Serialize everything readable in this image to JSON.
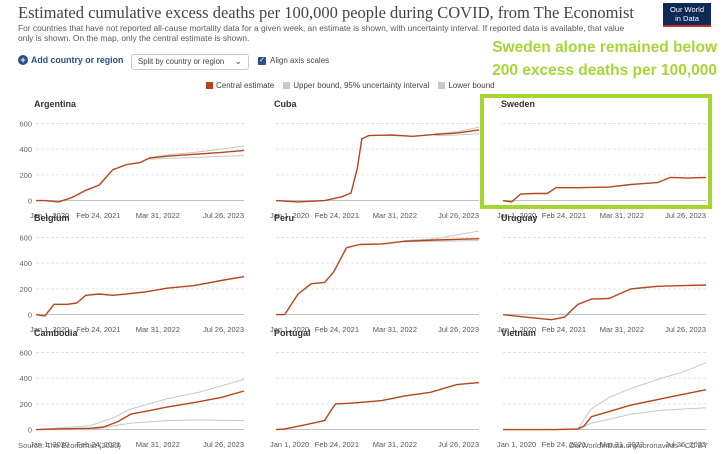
{
  "header": {
    "title": "Estimated cumulative excess deaths per 100,000 people during COVID, from The Economist",
    "subtitle": "For countries that have not reported all-cause mortality data for a given week, an estimate is shown, with uncertainty interval. If reported data is available, that value only is shown. On the map, only the central estimate is shown.",
    "logo_line1": "Our World",
    "logo_line2": "in Data"
  },
  "controls": {
    "add_country_label": "Add country or region",
    "split_label": "Split by country or region",
    "align_axes_label": "Align axis scales",
    "align_axes_checked": true
  },
  "legend": [
    {
      "label": "Central estimate",
      "color": "#b5451b"
    },
    {
      "label": "Upper bound, 95% uncertainty interval",
      "color": "#c8c8c8"
    },
    {
      "label": "Lower bound",
      "color": "#c8c8c8"
    }
  ],
  "annotation": {
    "line1": "Sweden alone remained below",
    "line2": "200 excess deaths per 100,000",
    "color": "#a6d432"
  },
  "footer": {
    "source": "Source: The Economist (2023)",
    "url": "OurWorldInData.org/coronavirus • CC BY"
  },
  "chart_data": {
    "type": "line",
    "x_ticks": [
      "Jan 1, 2020",
      "Feb 24, 2021",
      "Mar 31, 2022",
      "Jul 26, 2023"
    ],
    "y_ticks": [
      0,
      200,
      400,
      600
    ],
    "ylim": [
      -50,
      650
    ],
    "xlim": [
      "2020-01-01",
      "2023-11-01"
    ],
    "series_colors": {
      "central": "#b5451b",
      "upper": "#c8c8c8",
      "lower": "#c8c8c8"
    },
    "panels": [
      {
        "name": "Argentina",
        "central": [
          [
            "2020-01-01",
            0
          ],
          [
            "2020-03-01",
            0
          ],
          [
            "2020-06-01",
            -10
          ],
          [
            "2020-09-01",
            25
          ],
          [
            "2020-12-01",
            80
          ],
          [
            "2021-03-01",
            120
          ],
          [
            "2021-06-01",
            240
          ],
          [
            "2021-09-01",
            280
          ],
          [
            "2021-12-01",
            295
          ],
          [
            "2022-02-01",
            330
          ],
          [
            "2022-06-01",
            345
          ],
          [
            "2022-12-01",
            360
          ],
          [
            "2023-06-01",
            375
          ],
          [
            "2023-11-01",
            390
          ]
        ],
        "upper": [
          [
            "2022-02-01",
            335
          ],
          [
            "2022-06-01",
            355
          ],
          [
            "2022-12-01",
            375
          ],
          [
            "2023-06-01",
            400
          ],
          [
            "2023-11-01",
            425
          ]
        ],
        "lower": [
          [
            "2022-02-01",
            320
          ],
          [
            "2022-06-01",
            328
          ],
          [
            "2022-12-01",
            335
          ],
          [
            "2023-06-01",
            345
          ],
          [
            "2023-11-01",
            350
          ]
        ]
      },
      {
        "name": "Cuba",
        "central": [
          [
            "2020-01-01",
            0
          ],
          [
            "2020-06-01",
            -10
          ],
          [
            "2020-12-01",
            0
          ],
          [
            "2021-04-01",
            30
          ],
          [
            "2021-06-01",
            60
          ],
          [
            "2021-07-15",
            250
          ],
          [
            "2021-08-15",
            480
          ],
          [
            "2021-10-01",
            505
          ],
          [
            "2022-03-01",
            510
          ],
          [
            "2022-08-01",
            500
          ],
          [
            "2023-01-01",
            515
          ],
          [
            "2023-06-01",
            525
          ],
          [
            "2023-11-01",
            550
          ]
        ],
        "upper": [
          [
            "2023-01-01",
            520
          ],
          [
            "2023-06-01",
            535
          ],
          [
            "2023-11-01",
            570
          ]
        ],
        "lower": [
          [
            "2023-01-01",
            505
          ],
          [
            "2023-06-01",
            510
          ],
          [
            "2023-11-01",
            520
          ]
        ]
      },
      {
        "name": "Sweden",
        "central": [
          [
            "2020-01-01",
            0
          ],
          [
            "2020-03-01",
            -10
          ],
          [
            "2020-05-01",
            50
          ],
          [
            "2020-08-01",
            55
          ],
          [
            "2020-11-01",
            55
          ],
          [
            "2021-01-01",
            100
          ],
          [
            "2021-06-01",
            100
          ],
          [
            "2022-01-01",
            105
          ],
          [
            "2022-06-01",
            125
          ],
          [
            "2022-12-01",
            140
          ],
          [
            "2023-03-01",
            180
          ],
          [
            "2023-07-01",
            175
          ],
          [
            "2023-11-01",
            180
          ]
        ],
        "upper": [],
        "lower": []
      },
      {
        "name": "Belgium",
        "central": [
          [
            "2020-01-01",
            0
          ],
          [
            "2020-03-01",
            -10
          ],
          [
            "2020-05-01",
            80
          ],
          [
            "2020-08-01",
            80
          ],
          [
            "2020-10-01",
            90
          ],
          [
            "2020-12-01",
            150
          ],
          [
            "2021-03-01",
            160
          ],
          [
            "2021-06-01",
            150
          ],
          [
            "2022-01-01",
            175
          ],
          [
            "2022-06-01",
            205
          ],
          [
            "2022-12-01",
            225
          ],
          [
            "2023-06-01",
            265
          ],
          [
            "2023-11-01",
            295
          ]
        ],
        "upper": [],
        "lower": []
      },
      {
        "name": "Peru",
        "central": [
          [
            "2020-01-01",
            0
          ],
          [
            "2020-03-01",
            0
          ],
          [
            "2020-06-01",
            160
          ],
          [
            "2020-09-01",
            240
          ],
          [
            "2020-12-01",
            250
          ],
          [
            "2021-02-01",
            330
          ],
          [
            "2021-05-01",
            520
          ],
          [
            "2021-08-01",
            545
          ],
          [
            "2022-01-01",
            550
          ],
          [
            "2022-06-01",
            570
          ],
          [
            "2023-01-01",
            580
          ],
          [
            "2023-11-01",
            590
          ]
        ],
        "upper": [
          [
            "2022-06-01",
            575
          ],
          [
            "2023-01-01",
            590
          ],
          [
            "2023-11-01",
            650
          ]
        ],
        "lower": [
          [
            "2022-06-01",
            565
          ],
          [
            "2023-01-01",
            570
          ],
          [
            "2023-11-01",
            575
          ]
        ]
      },
      {
        "name": "Uruguay",
        "central": [
          [
            "2020-01-01",
            0
          ],
          [
            "2020-06-01",
            -20
          ],
          [
            "2020-12-01",
            -40
          ],
          [
            "2021-03-01",
            -20
          ],
          [
            "2021-06-01",
            80
          ],
          [
            "2021-09-01",
            120
          ],
          [
            "2022-01-01",
            125
          ],
          [
            "2022-06-01",
            200
          ],
          [
            "2022-12-01",
            220
          ],
          [
            "2023-06-01",
            225
          ],
          [
            "2023-11-01",
            230
          ]
        ],
        "upper": [],
        "lower": []
      },
      {
        "name": "Cambodia",
        "central": [
          [
            "2020-01-01",
            0
          ],
          [
            "2020-06-01",
            5
          ],
          [
            "2021-01-01",
            10
          ],
          [
            "2021-04-01",
            20
          ],
          [
            "2021-07-01",
            60
          ],
          [
            "2021-10-01",
            120
          ],
          [
            "2022-01-01",
            140
          ],
          [
            "2022-06-01",
            175
          ],
          [
            "2022-12-01",
            210
          ],
          [
            "2023-06-01",
            250
          ],
          [
            "2023-11-01",
            300
          ]
        ],
        "upper": [
          [
            "2020-01-01",
            0
          ],
          [
            "2021-01-01",
            30
          ],
          [
            "2021-06-01",
            90
          ],
          [
            "2021-10-01",
            160
          ],
          [
            "2022-06-01",
            240
          ],
          [
            "2023-01-01",
            290
          ],
          [
            "2023-11-01",
            390
          ]
        ],
        "lower": [
          [
            "2020-01-01",
            0
          ],
          [
            "2021-01-01",
            0
          ],
          [
            "2021-10-01",
            50
          ],
          [
            "2022-06-01",
            70
          ],
          [
            "2023-01-01",
            75
          ],
          [
            "2023-11-01",
            70
          ]
        ]
      },
      {
        "name": "Portugal",
        "central": [
          [
            "2020-01-01",
            0
          ],
          [
            "2020-03-01",
            5
          ],
          [
            "2020-08-01",
            40
          ],
          [
            "2020-12-01",
            70
          ],
          [
            "2021-01-15",
            150
          ],
          [
            "2021-02-15",
            200
          ],
          [
            "2021-06-01",
            205
          ],
          [
            "2022-01-01",
            225
          ],
          [
            "2022-06-01",
            260
          ],
          [
            "2022-12-01",
            290
          ],
          [
            "2023-06-01",
            350
          ],
          [
            "2023-11-01",
            365
          ]
        ],
        "upper": [],
        "lower": []
      },
      {
        "name": "Vietnam",
        "central": [
          [
            "2020-01-01",
            0
          ],
          [
            "2021-01-01",
            0
          ],
          [
            "2021-06-01",
            5
          ],
          [
            "2021-07-15",
            30
          ],
          [
            "2021-09-01",
            100
          ],
          [
            "2022-01-01",
            140
          ],
          [
            "2022-06-01",
            190
          ],
          [
            "2023-01-01",
            240
          ],
          [
            "2023-06-01",
            275
          ],
          [
            "2023-11-01",
            310
          ]
        ],
        "upper": [
          [
            "2021-06-01",
            10
          ],
          [
            "2021-09-01",
            160
          ],
          [
            "2022-01-01",
            250
          ],
          [
            "2022-06-01",
            320
          ],
          [
            "2023-01-01",
            400
          ],
          [
            "2023-06-01",
            450
          ],
          [
            "2023-11-01",
            520
          ]
        ],
        "lower": [
          [
            "2021-06-01",
            0
          ],
          [
            "2021-09-01",
            50
          ],
          [
            "2022-01-01",
            80
          ],
          [
            "2022-06-01",
            120
          ],
          [
            "2023-01-01",
            150
          ],
          [
            "2023-11-01",
            170
          ]
        ]
      }
    ]
  }
}
